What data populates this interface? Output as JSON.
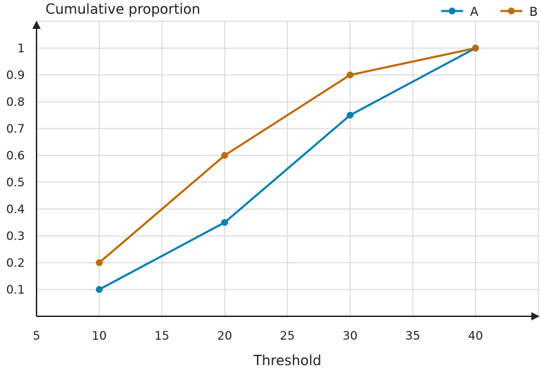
{
  "chart_data": {
    "type": "line",
    "xlabel": "Threshold",
    "ylabel": "Cumulative proportion",
    "xlim": [
      5,
      45
    ],
    "ylim": [
      0,
      1.1
    ],
    "x_ticks": [
      5,
      10,
      15,
      20,
      25,
      30,
      35,
      40
    ],
    "y_ticks": [
      0.1,
      0.2,
      0.3,
      0.4,
      0.5,
      0.6,
      0.7,
      0.8,
      0.9,
      1
    ],
    "x_tick_labels": [
      "5",
      "10",
      "15",
      "20",
      "25",
      "30",
      "35",
      "40"
    ],
    "y_tick_labels": [
      "0.1",
      "0.2",
      "0.3",
      "0.4",
      "0.5",
      "0.6",
      "0.7",
      "0.8",
      "0.9",
      "1"
    ],
    "grid": true,
    "legend_position": "top-right",
    "series": [
      {
        "name": "A",
        "color": "#0a7fb0",
        "x": [
          10,
          20,
          30,
          40
        ],
        "y": [
          0.1,
          0.35,
          0.75,
          1.0
        ]
      },
      {
        "name": "B",
        "color": "#bd6a08",
        "x": [
          10,
          20,
          30,
          40
        ],
        "y": [
          0.2,
          0.6,
          0.9,
          1.0
        ]
      }
    ]
  }
}
